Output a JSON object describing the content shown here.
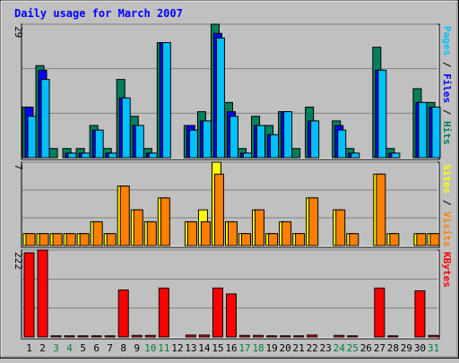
{
  "colors": {
    "background": "#c0c0c0",
    "plot_bg": "#c0c0c0",
    "grid": "#808080",
    "title": "#0000ff",
    "hits": "#00805c",
    "files": "#0000ff",
    "pages": "#00c0ff",
    "sites": "#ffff00",
    "visits": "#ff8000",
    "kbytes": "#ff0000",
    "weekday_label": "#000000",
    "weekend_label": "#008040",
    "bar_outline": "#000000"
  },
  "chart_data": [
    {
      "type": "bar",
      "title": "Daily usage for March 2007",
      "ylabel": "Pages / Files / Hits",
      "ylabel_parts": [
        "Pages",
        " / ",
        "Files",
        " / ",
        "Hits"
      ],
      "ymax_label": "29",
      "ylim": [
        0,
        29
      ],
      "categories": [
        "1",
        "2",
        "3",
        "4",
        "5",
        "6",
        "7",
        "8",
        "9",
        "10",
        "11",
        "12",
        "13",
        "14",
        "15",
        "16",
        "17",
        "18",
        "19",
        "20",
        "21",
        "22",
        "23",
        "24",
        "25",
        "26",
        "27",
        "28",
        "29",
        "30",
        "31"
      ],
      "weekend_days": [
        "3",
        "4",
        "10",
        "11",
        "17",
        "18",
        "24",
        "25",
        "31"
      ],
      "series": [
        {
          "name": "Hits",
          "values": [
            11,
            20,
            2,
            2,
            2,
            7,
            2,
            17,
            9,
            2,
            25,
            0,
            7,
            10,
            29,
            12,
            2,
            9,
            7,
            10,
            2,
            11,
            0,
            8,
            2,
            0,
            24,
            2,
            0,
            15,
            12
          ]
        },
        {
          "name": "Files",
          "values": [
            11,
            19,
            0,
            1,
            1,
            6,
            1,
            13,
            7,
            1,
            25,
            0,
            7,
            8,
            27,
            10,
            1,
            7,
            5,
            10,
            0,
            8,
            0,
            7,
            1,
            0,
            19,
            1,
            0,
            12,
            11
          ]
        },
        {
          "name": "Pages",
          "values": [
            9,
            17,
            0,
            1,
            1,
            6,
            1,
            13,
            7,
            1,
            25,
            0,
            6,
            8,
            26,
            9,
            1,
            7,
            5,
            10,
            0,
            8,
            0,
            6,
            1,
            0,
            19,
            1,
            0,
            12,
            11
          ]
        }
      ]
    },
    {
      "type": "bar",
      "ylabel": "Sites / Visits",
      "ylabel_parts": [
        "Sites",
        " / ",
        "Visits"
      ],
      "ymax_label": "7",
      "ylim": [
        0,
        7
      ],
      "categories": [
        "1",
        "2",
        "3",
        "4",
        "5",
        "6",
        "7",
        "8",
        "9",
        "10",
        "11",
        "12",
        "13",
        "14",
        "15",
        "16",
        "17",
        "18",
        "19",
        "20",
        "21",
        "22",
        "23",
        "24",
        "25",
        "26",
        "27",
        "28",
        "29",
        "30",
        "31"
      ],
      "series": [
        {
          "name": "Sites",
          "values": [
            1,
            1,
            1,
            1,
            1,
            2,
            1,
            5,
            3,
            2,
            4,
            0,
            2,
            3,
            7,
            2,
            1,
            3,
            1,
            2,
            1,
            4,
            0,
            3,
            1,
            0,
            6,
            1,
            0,
            1,
            1
          ]
        },
        {
          "name": "Visits",
          "values": [
            1,
            1,
            1,
            1,
            1,
            2,
            1,
            5,
            3,
            2,
            4,
            0,
            2,
            2,
            6,
            2,
            1,
            3,
            1,
            2,
            1,
            4,
            0,
            3,
            1,
            0,
            6,
            1,
            0,
            1,
            1
          ]
        }
      ]
    },
    {
      "type": "bar",
      "ylabel": "KBytes",
      "ymax_label": "222",
      "ylim": [
        0,
        222
      ],
      "categories": [
        "1",
        "2",
        "3",
        "4",
        "5",
        "6",
        "7",
        "8",
        "9",
        "10",
        "11",
        "12",
        "13",
        "14",
        "15",
        "16",
        "17",
        "18",
        "19",
        "20",
        "21",
        "22",
        "23",
        "24",
        "25",
        "26",
        "27",
        "28",
        "29",
        "30",
        "31"
      ],
      "series": [
        {
          "name": "KBytes",
          "values": [
            215,
            222,
            3,
            3,
            3,
            3,
            3,
            120,
            4,
            4,
            125,
            0,
            5,
            5,
            125,
            110,
            4,
            4,
            3,
            3,
            3,
            5,
            0,
            4,
            3,
            0,
            125,
            3,
            0,
            118,
            4
          ]
        }
      ]
    }
  ]
}
